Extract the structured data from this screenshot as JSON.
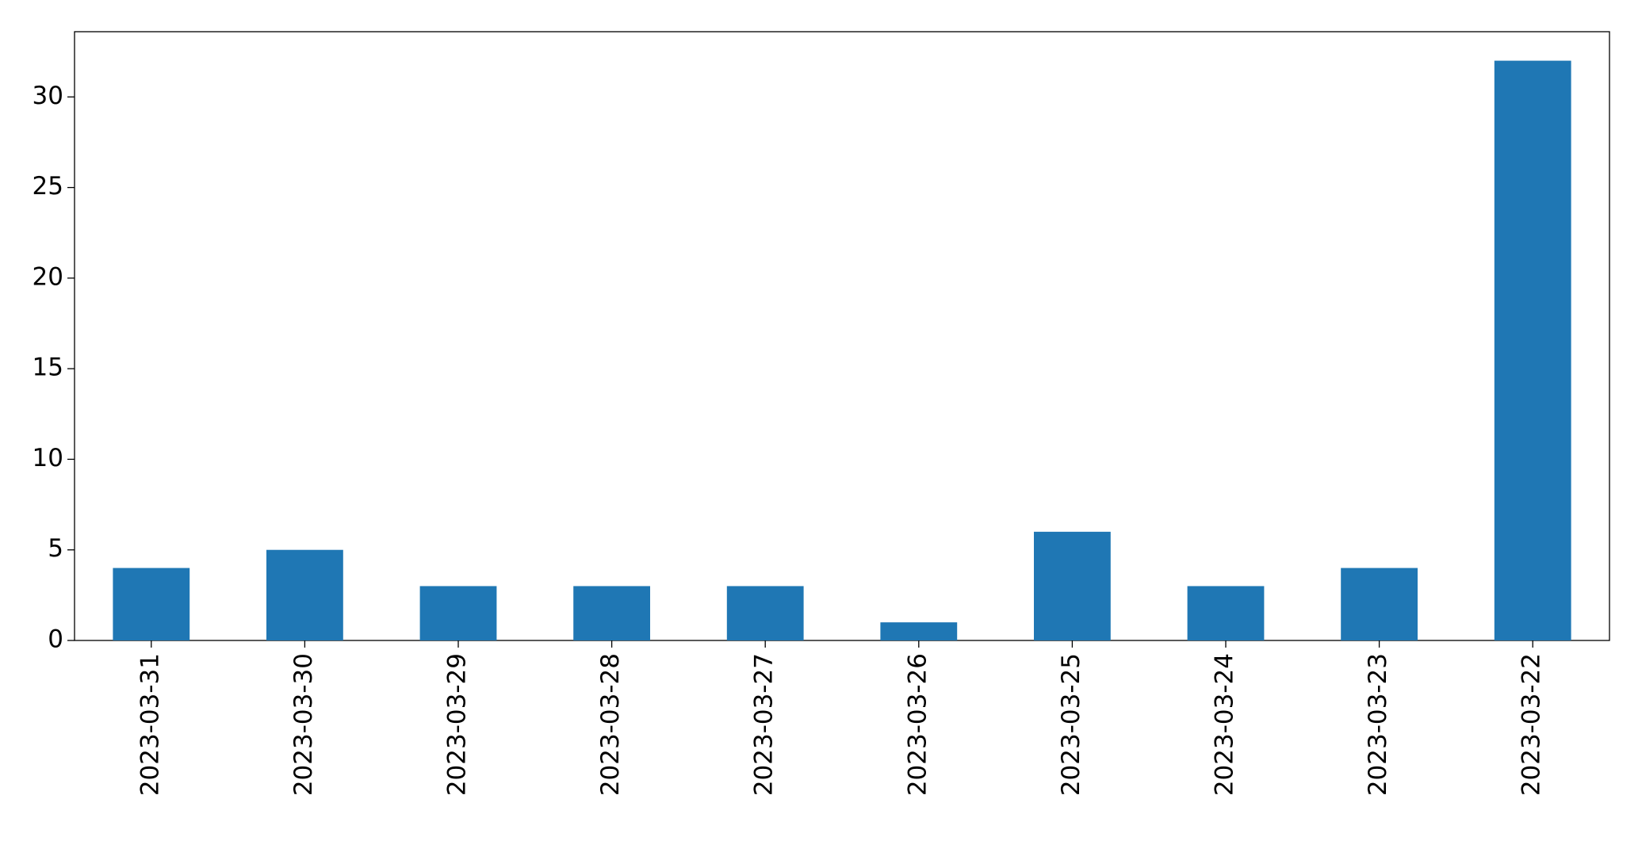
{
  "chart_data": {
    "type": "bar",
    "categories": [
      "2023-03-31",
      "2023-03-30",
      "2023-03-29",
      "2023-03-28",
      "2023-03-27",
      "2023-03-26",
      "2023-03-25",
      "2023-03-24",
      "2023-03-23",
      "2023-03-22"
    ],
    "values": [
      4,
      5,
      3,
      3,
      3,
      1,
      6,
      3,
      4,
      32
    ],
    "color": "#1f77b4",
    "ylim": [
      0,
      33.6
    ],
    "yticks": [
      0,
      5,
      10,
      15,
      20,
      25,
      30
    ],
    "grid": false
  }
}
